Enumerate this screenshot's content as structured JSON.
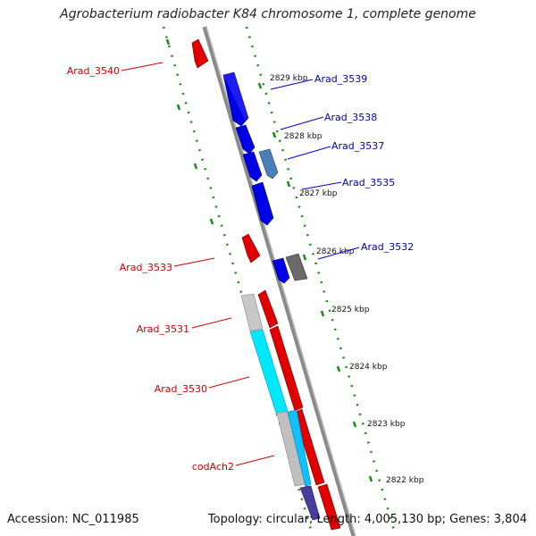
{
  "title": "Agrobacterium radiobacter K84 chromosome 1, complete genome",
  "footer": {
    "accession": "Accession: NC_011985",
    "summary": "Topology: circular; Length: 4,005,130 bp; Genes: 3,804"
  },
  "kbp_labels": [
    "2829 kbp",
    "2828 kbp",
    "2827 kbp",
    "2826 kbp",
    "2825 kbp",
    "2824 kbp",
    "2823 kbp",
    "2822 kbp"
  ],
  "gene_labels_right": [
    "Arad_3539",
    "Arad_3538",
    "Arad_3537",
    "Arad_3535",
    "Arad_3532"
  ],
  "gene_labels_left": [
    "Arad_3540",
    "Arad_3533",
    "Arad_3531",
    "Arad_3530",
    "codAch2"
  ],
  "colors": {
    "forward_gene": "#e00000",
    "reverse_gene": "#0000e0",
    "axis": "#888888",
    "ticks": "#1a8a1a",
    "label_left": "#cc0000",
    "label_right": "#0000aa"
  }
}
